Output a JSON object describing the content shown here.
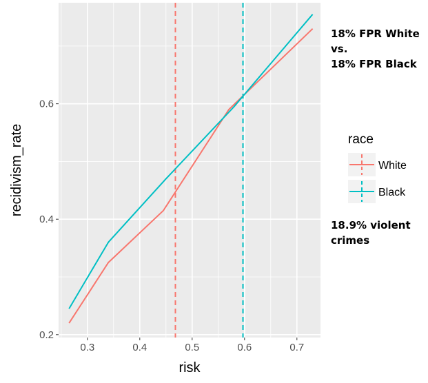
{
  "chart_data": {
    "type": "line",
    "xlabel": "risk",
    "ylabel": "recidivism_rate",
    "xlim": [
      0.245,
      0.745
    ],
    "ylim": [
      0.195,
      0.775
    ],
    "x_ticks": [
      0.3,
      0.4,
      0.5,
      0.6,
      0.7
    ],
    "y_ticks": [
      0.2,
      0.4,
      0.6
    ],
    "x_tick_labels": [
      "0.3",
      "0.4",
      "0.5",
      "0.6",
      "0.7"
    ],
    "y_tick_labels": [
      "0.2",
      "0.4",
      "0.6"
    ],
    "grid": true,
    "legend": {
      "title": "race",
      "position": "right",
      "entries": [
        "White",
        "Black"
      ]
    },
    "series": [
      {
        "name": "White",
        "color": "#F8766D",
        "x": [
          0.265,
          0.34,
          0.445,
          0.57,
          0.73
        ],
        "y": [
          0.22,
          0.325,
          0.415,
          0.59,
          0.73
        ]
      },
      {
        "name": "Black",
        "color": "#00BFC4",
        "x": [
          0.265,
          0.34,
          0.45,
          0.58,
          0.73
        ],
        "y": [
          0.245,
          0.36,
          0.47,
          0.595,
          0.755
        ]
      }
    ],
    "vlines": [
      {
        "series": "White",
        "x": 0.468,
        "color": "#F8766D",
        "style": "dashed"
      },
      {
        "series": "Black",
        "x": 0.597,
        "color": "#00BFC4",
        "style": "dashed"
      }
    ],
    "annotations": {
      "top": [
        "18% FPR White",
        "vs.",
        "18% FPR Black"
      ],
      "bottom": [
        "18.9% violent",
        "crimes"
      ]
    },
    "panel_background": "#EBEBEB",
    "grid_color": "#FFFFFF"
  }
}
